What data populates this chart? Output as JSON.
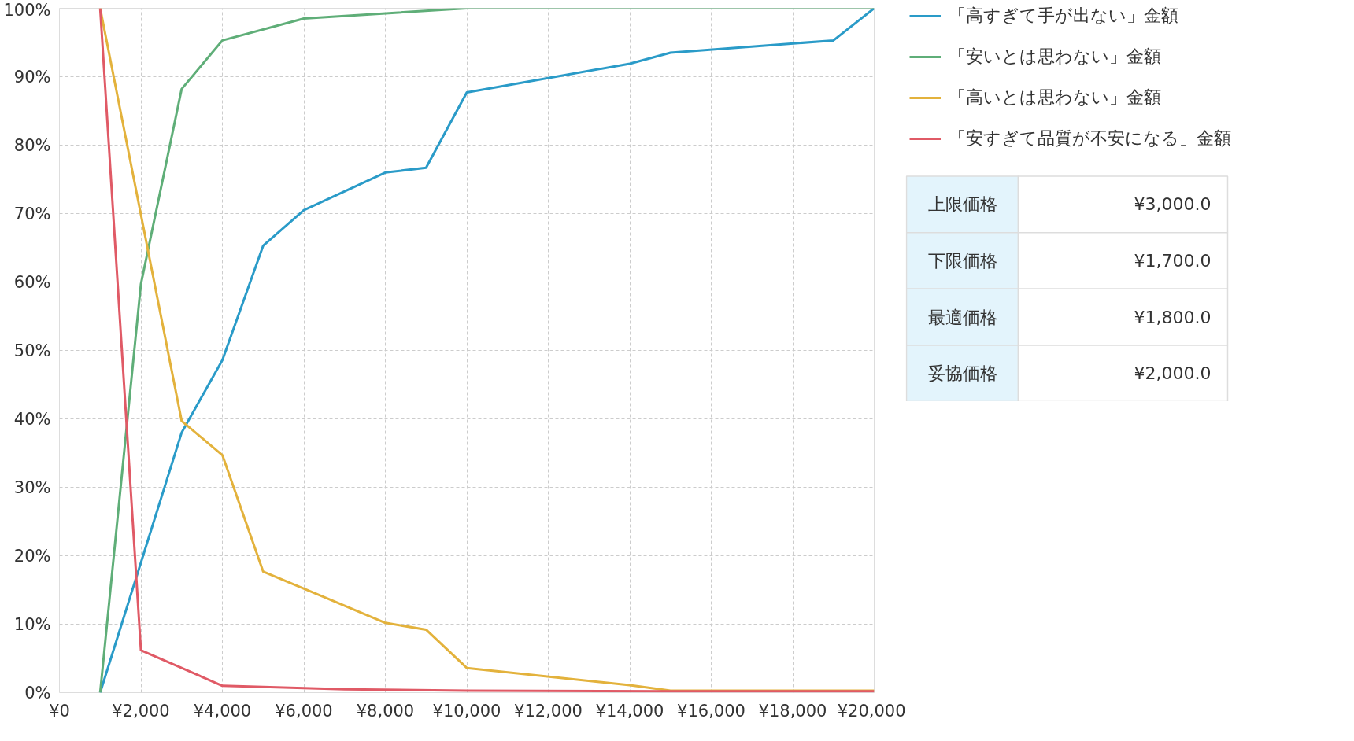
{
  "chart_data": [
    {
      "type": "line",
      "xlim": [
        0,
        20000
      ],
      "ylim": [
        0,
        100
      ],
      "xticks": [
        {
          "value": 0,
          "label": "¥0"
        },
        {
          "value": 2000,
          "label": "¥2,000"
        },
        {
          "value": 4000,
          "label": "¥4,000"
        },
        {
          "value": 6000,
          "label": "¥6,000"
        },
        {
          "value": 8000,
          "label": "¥8,000"
        },
        {
          "value": 10000,
          "label": "¥10,000"
        },
        {
          "value": 12000,
          "label": "¥12,000"
        },
        {
          "value": 14000,
          "label": "¥14,000"
        },
        {
          "value": 16000,
          "label": "¥16,000"
        },
        {
          "value": 18000,
          "label": "¥18,000"
        },
        {
          "value": 20000,
          "label": "¥20,000"
        }
      ],
      "yticks": [
        {
          "value": 0,
          "label": "0%"
        },
        {
          "value": 10,
          "label": "10%"
        },
        {
          "value": 20,
          "label": "20%"
        },
        {
          "value": 30,
          "label": "30%"
        },
        {
          "value": 40,
          "label": "40%"
        },
        {
          "value": 50,
          "label": "50%"
        },
        {
          "value": 60,
          "label": "60%"
        },
        {
          "value": 70,
          "label": "70%"
        },
        {
          "value": 80,
          "label": "80%"
        },
        {
          "value": 90,
          "label": "90%"
        },
        {
          "value": 100,
          "label": "100%"
        }
      ],
      "grid": true,
      "legend": "right",
      "series": [
        {
          "name": "「高すぎて手が出ない」金額",
          "color": "#2a9bc8",
          "x": [
            1000,
            2000,
            3000,
            4000,
            5000,
            6000,
            8000,
            9000,
            10000,
            14000,
            15000,
            19000,
            20000
          ],
          "values": [
            0,
            19,
            38,
            48.6,
            65.3,
            70.5,
            76,
            76.7,
            87.7,
            91.9,
            93.5,
            95.3,
            100
          ]
        },
        {
          "name": "「安いとは思わない」金額",
          "color": "#5fae78",
          "x": [
            1000,
            2000,
            3000,
            4000,
            6000,
            10000,
            20000
          ],
          "values": [
            0,
            59.7,
            88.2,
            95.3,
            98.5,
            100,
            100
          ]
        },
        {
          "name": "「高いとは思わない」金額",
          "color": "#e3b23c",
          "x": [
            1000,
            3000,
            4000,
            5000,
            8000,
            9000,
            10000,
            14000,
            15000,
            20000
          ],
          "values": [
            100,
            39.7,
            34.7,
            17.7,
            10.2,
            9.2,
            3.6,
            1.1,
            0.3,
            0.3
          ]
        },
        {
          "name": "「安すぎて品質が不安になる」金額",
          "color": "#e05a66",
          "x": [
            1000,
            2000,
            4000,
            7000,
            10000,
            15000,
            20000
          ],
          "values": [
            100,
            6.2,
            1,
            0.5,
            0.3,
            0.2,
            0.2
          ]
        }
      ]
    },
    {
      "type": "other",
      "categories": [
        "上限価格",
        "下限価格",
        "最適価格",
        "妥協価格"
      ],
      "value_labels": [
        "¥3,000.0",
        "¥1,700.0",
        "¥1,800.0",
        "¥2,000.0"
      ]
    }
  ]
}
